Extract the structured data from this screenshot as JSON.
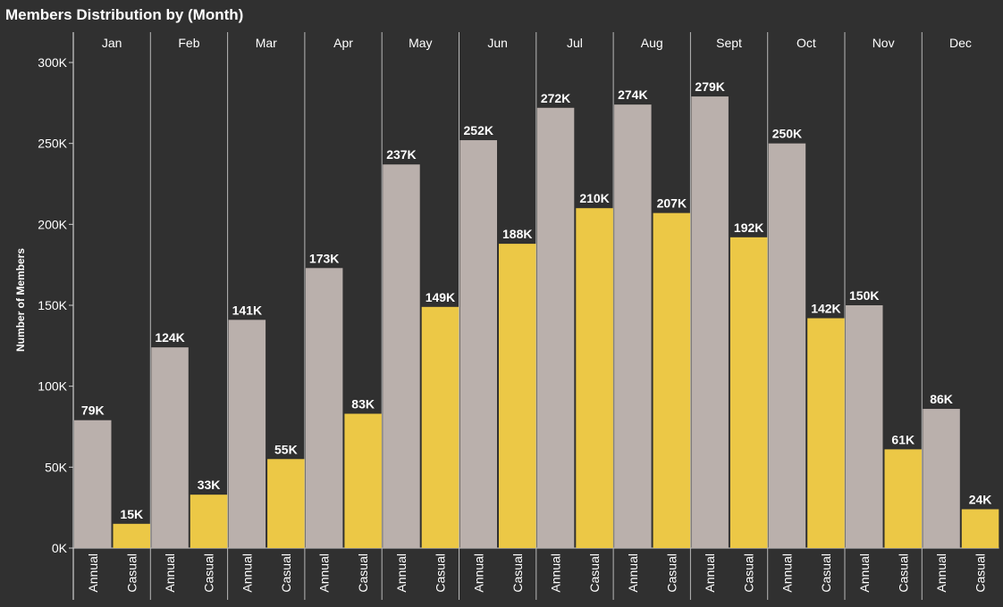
{
  "chart_data": {
    "type": "bar",
    "title": "Members Distribution by (Month)",
    "ylabel": "Number of Members",
    "xlabel": "",
    "ylim": [
      0,
      310000
    ],
    "y_ticks": [
      0,
      50000,
      100000,
      150000,
      200000,
      250000,
      300000
    ],
    "y_tick_labels": [
      "0K",
      "50K",
      "100K",
      "150K",
      "200K",
      "250K",
      "300K"
    ],
    "grid": false,
    "legend": "none",
    "categories": [
      "Jan",
      "Feb",
      "Mar",
      "Apr",
      "May",
      "Jun",
      "Jul",
      "Aug",
      "Sept",
      "Oct",
      "Nov",
      "Dec"
    ],
    "sub_categories": [
      "Annual",
      "Casual"
    ],
    "series": [
      {
        "key": "Annual",
        "color": "#BAB0AC",
        "values": [
          79000,
          124000,
          141000,
          173000,
          237000,
          252000,
          272000,
          274000,
          279000,
          250000,
          150000,
          86000
        ],
        "labels": [
          "79K",
          "124K",
          "141K",
          "173K",
          "237K",
          "252K",
          "272K",
          "274K",
          "279K",
          "250K",
          "150K",
          "86K"
        ]
      },
      {
        "key": "Casual",
        "color": "#ECC846",
        "values": [
          15000,
          33000,
          55000,
          83000,
          149000,
          188000,
          210000,
          207000,
          192000,
          142000,
          61000,
          24000
        ],
        "labels": [
          "15K",
          "33K",
          "55K",
          "83K",
          "149K",
          "188K",
          "210K",
          "207K",
          "192K",
          "142K",
          "61K",
          "24K"
        ]
      }
    ]
  },
  "colors": {
    "background": "#303030",
    "axis": "#cfcfcf",
    "divider": "#b8b8b8",
    "text": "#ffffff"
  }
}
